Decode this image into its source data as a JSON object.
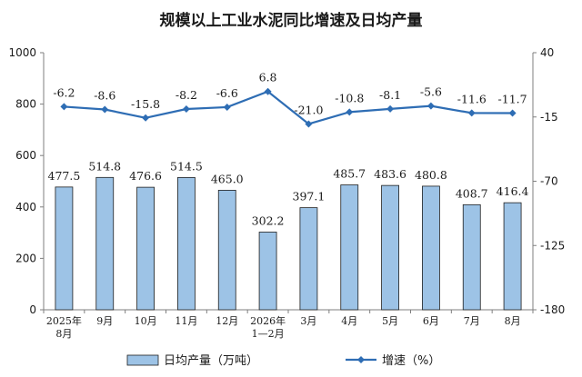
{
  "chart_data": {
    "type": "bar+line",
    "title": "规模以上工业水泥同比增速及日均产量",
    "categories": [
      [
        "2025年",
        "8月"
      ],
      [
        "9月"
      ],
      [
        "10月"
      ],
      [
        "11月"
      ],
      [
        "12月"
      ],
      [
        "2026年",
        "1—2月"
      ],
      [
        "3月"
      ],
      [
        "4月"
      ],
      [
        "5月"
      ],
      [
        "6月"
      ],
      [
        "7月"
      ],
      [
        "8月"
      ]
    ],
    "series": [
      {
        "name": "日均产量（万吨）",
        "type": "bar",
        "axis": "left",
        "color": "#9DC3E6",
        "values": [
          477.5,
          514.8,
          476.6,
          514.5,
          465.0,
          302.2,
          397.1,
          485.7,
          483.6,
          480.8,
          408.7,
          416.4
        ],
        "labels": [
          "477.5",
          "514.8",
          "476.6",
          "514.5",
          "465.0",
          "302.2",
          "397.1",
          "485.7",
          "483.6",
          "480.8",
          "408.7",
          "416.4"
        ]
      },
      {
        "name": "增速（%）",
        "type": "line",
        "axis": "right",
        "color": "#2E6DB4",
        "values": [
          -6.2,
          -8.6,
          -15.8,
          -8.2,
          -6.6,
          6.8,
          -21.0,
          -10.8,
          -8.1,
          -5.6,
          -11.6,
          -11.7
        ],
        "labels": [
          "-6.2",
          "-8.6",
          "-15.8",
          "-8.2",
          "-6.6",
          "6.8",
          "-21.0",
          "-10.8",
          "-8.1",
          "-5.6",
          "-11.6",
          "-11.7"
        ]
      }
    ],
    "y_left": {
      "min": 0,
      "max": 1000,
      "ticks": [
        0,
        200,
        400,
        600,
        800,
        1000
      ]
    },
    "y_right": {
      "min": -180,
      "max": 40,
      "ticks": [
        40,
        -15,
        -70,
        -125,
        -180
      ]
    },
    "legend_position": "bottom",
    "grid": false
  }
}
